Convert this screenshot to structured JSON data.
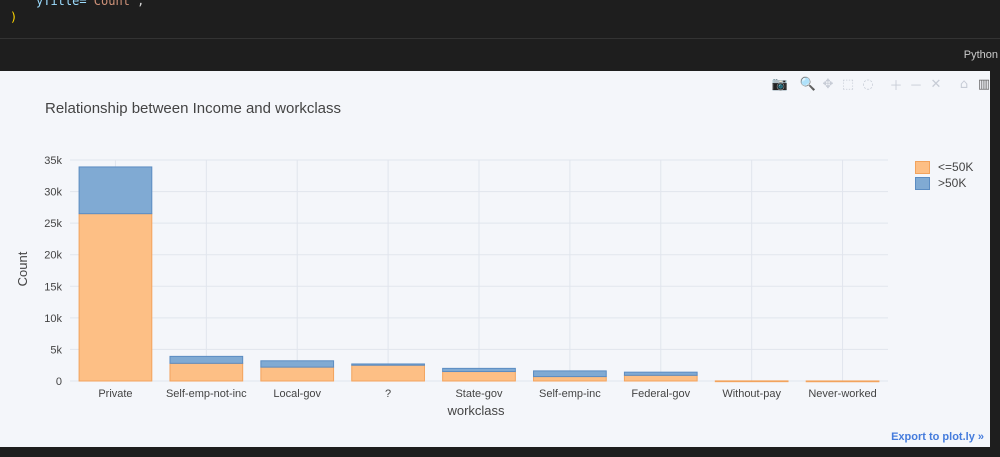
{
  "code": {
    "line1_key": "yTitle=",
    "line1_value": "'Count'",
    "line1_end": ",",
    "line2": ")"
  },
  "cell": {
    "language": "Python"
  },
  "modebar": {
    "buttons": [
      {
        "name": "camera-icon",
        "glyph": "📷"
      },
      {
        "name": "zoom-icon",
        "glyph": "🔍"
      },
      {
        "name": "pan-icon",
        "glyph": "✥"
      },
      {
        "name": "box-select-icon",
        "glyph": "⬚"
      },
      {
        "name": "lasso-icon",
        "glyph": "◌"
      },
      {
        "name": "zoom-in-icon",
        "glyph": "＋"
      },
      {
        "name": "zoom-out-icon",
        "glyph": "－"
      },
      {
        "name": "autoscale-icon",
        "glyph": "✕"
      },
      {
        "name": "home-icon",
        "glyph": "⌂"
      },
      {
        "name": "plotly-logo-icon",
        "glyph": "▥"
      }
    ]
  },
  "export_link": "Export to plot.ly »",
  "colors": {
    "series1": "#fdbf85",
    "series1_line": "#f2a35d",
    "series2": "#80aad3",
    "series2_line": "#5b8cc2",
    "grid": "#e1e5ed",
    "text": "#444444"
  },
  "chart_data": {
    "type": "bar",
    "barmode": "stack",
    "title": "Relationship between Income and workclass",
    "xlabel": "workclass",
    "ylabel": "Count",
    "categories": [
      "Private",
      "Self-emp-not-inc",
      "Local-gov",
      "?",
      "State-gov",
      "Self-emp-inc",
      "Federal-gov",
      "Without-pay",
      "Never-worked"
    ],
    "series": [
      {
        "name": "<=50K",
        "values": [
          26500,
          2800,
          2200,
          2500,
          1500,
          700,
          900,
          20,
          10
        ]
      },
      {
        "name": ">50K",
        "values": [
          7400,
          1100,
          1000,
          200,
          500,
          900,
          500,
          0,
          0
        ]
      }
    ],
    "ylim": [
      0,
      35000
    ],
    "yticks": [
      0,
      5000,
      10000,
      15000,
      20000,
      25000,
      30000,
      35000
    ],
    "ytick_labels": [
      "0",
      "5k",
      "10k",
      "15k",
      "20k",
      "25k",
      "30k",
      "35k"
    ],
    "grid": true,
    "legend_position": "top-right"
  }
}
